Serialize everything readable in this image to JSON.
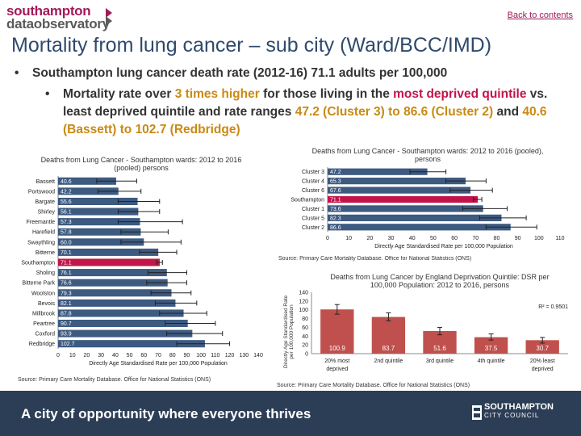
{
  "header": {
    "logo_line1": "southampton",
    "logo_line2": "dataobservatory",
    "back_link": "Back to contents"
  },
  "title": "Mortality from lung cancer – sub city (Ward/BCC/IMD)",
  "bullet1": {
    "text": "Southampton lung cancer death rate (2012-16) ",
    "value": "71.1",
    "suffix": " adults per 100,000"
  },
  "bullet2": {
    "t1": "Mortality rate over ",
    "h1": "3 times higher",
    "t2": " for those living in the ",
    "h2": "most deprived quintile",
    "t3": " vs. least deprived quintile and rate ranges ",
    "h3": "47.2 (Cluster 3) to 86.6 (Cluster 2)",
    "t4": " and ",
    "h4": "40.6 (Bassett) to 102.7 (Redbridge)"
  },
  "footer": {
    "tagline": "A city of opportunity where everyone thrives",
    "council_line1": "SOUTHAMPTON",
    "council_line2": "CITY COUNCIL"
  },
  "colors": {
    "bar": "#3d5a80",
    "highlight": "#c1154a",
    "quintile": "#c0504d",
    "footer": "#2c3e56",
    "error_bar": "#222222"
  },
  "chart_data": [
    {
      "type": "bar",
      "orientation": "horizontal",
      "title": "Deaths from Lung Cancer - Southampton wards: 2012 to 2016 (pooled) persons",
      "xlabel": "Directly Age Standardised Rate per 100,000 Population",
      "xlim": [
        0,
        140
      ],
      "xticks": [
        "0",
        "10",
        "20",
        "30",
        "40",
        "50",
        "60",
        "70",
        "80",
        "90",
        "100",
        "110",
        "120",
        "130",
        "140"
      ],
      "categories": [
        "Bassett",
        "Portswood",
        "Bargate",
        "Shirley",
        "Freemantle",
        "Harefield",
        "Swaythling",
        "Bitterne",
        "Southampton",
        "Sholing",
        "Bitterne Park",
        "Woolston",
        "Bevois",
        "Millbrook",
        "Peartree",
        "Coxford",
        "Redbridge"
      ],
      "values": [
        40.6,
        42.2,
        55.6,
        56.1,
        57.3,
        57.8,
        60.0,
        70.1,
        71.1,
        76.1,
        76.6,
        79.3,
        82.1,
        87.8,
        90.7,
        93.9,
        102.7
      ],
      "value_labels": [
        "40.6",
        "42.2",
        "55.6",
        "56.1",
        "57.3",
        "57.8",
        "60.0",
        "70.1",
        "71.1",
        "76.1",
        "76.6",
        "79.3",
        "82.1",
        "87.8",
        "90.7",
        "93.9",
        "102.7"
      ],
      "ci_low": [
        27,
        28,
        42,
        42,
        42,
        44,
        44,
        57,
        69,
        63,
        62,
        65,
        68,
        71,
        75,
        76,
        83
      ],
      "ci_high": [
        55,
        58,
        71,
        71,
        87,
        77,
        86,
        83,
        73,
        90,
        90,
        93,
        97,
        104,
        110,
        115,
        120
      ],
      "highlight": "Southampton",
      "source": "Source: Primary Care Mortality Database. Office for National Statistics (ONS)"
    },
    {
      "type": "bar",
      "orientation": "horizontal",
      "title": "Deaths from Lung Cancer - Southampton wards: 2012 to 2016 (pooled), persons",
      "xlabel": "Directly Age Standardised Rate per 100,000 Population",
      "xlim": [
        0,
        110
      ],
      "xticks": [
        "0",
        "10",
        "20",
        "30",
        "40",
        "50",
        "60",
        "70",
        "80",
        "90",
        "100",
        "110"
      ],
      "categories": [
        "Cluster 3",
        "Cluster 4",
        "Cluster 6",
        "Southampton",
        "Cluster 1",
        "Cluster 5",
        "Cluster 2"
      ],
      "values": [
        47.2,
        65.3,
        67.6,
        71.1,
        73.6,
        82.3,
        86.6
      ],
      "value_labels": [
        "47.2",
        "65.3",
        "67.6",
        "71.1",
        "73.6",
        "82.3",
        "86.6"
      ],
      "ci_low": [
        39,
        56,
        58,
        69,
        64,
        72,
        75
      ],
      "ci_high": [
        56,
        75,
        78,
        73,
        85,
        94,
        99
      ],
      "highlight": "Southampton",
      "source": "Source: Primary Care Mortality Database. Office for National Statistics (ONS)"
    },
    {
      "type": "bar",
      "orientation": "vertical",
      "title": "Deaths from Lung Cancer by England Deprivation Quintile: DSR per 100,000 Population: 2012 to 2016, persons",
      "ylabel": "Directly Age Standardised Rate per 100,000 Population",
      "ylim": [
        0,
        140
      ],
      "yticks": [
        "0",
        "20",
        "40",
        "60",
        "80",
        "100",
        "120",
        "140"
      ],
      "categories": [
        "20% most deprived",
        "2nd quintile",
        "3rd quintile",
        "4th quintile",
        "20% least deprived"
      ],
      "values": [
        100.9,
        83.7,
        51.6,
        37.5,
        30.7
      ],
      "value_labels": [
        "100.9",
        "83.7",
        "51.6",
        "37.5",
        "30.7"
      ],
      "ci_low": [
        90,
        75,
        43,
        31,
        24
      ],
      "ci_high": [
        112,
        93,
        60,
        45,
        37
      ],
      "trend_note": "R² = 0.9501",
      "source": "Source: Primary Care Mortality Database. Office for National Statistics (ONS)"
    }
  ]
}
